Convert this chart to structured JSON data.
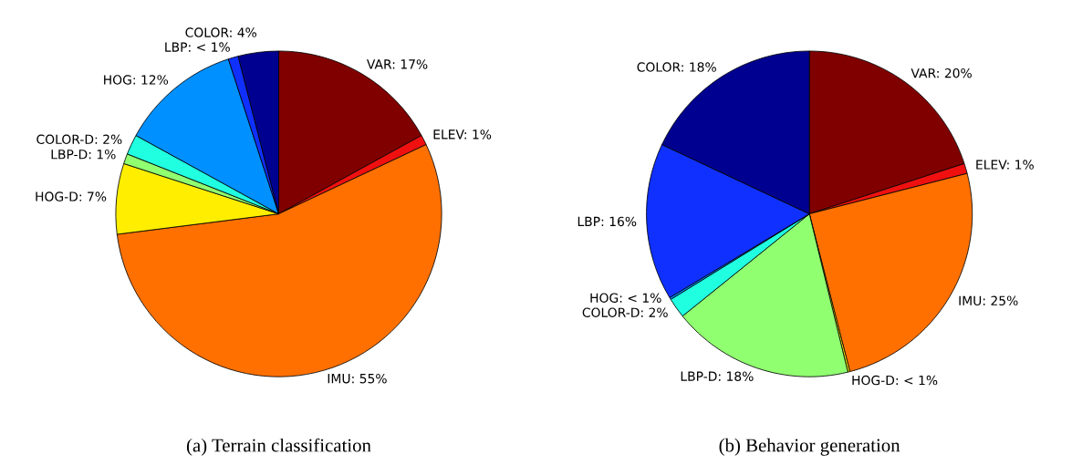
{
  "chart_data": [
    {
      "type": "pie",
      "title": "(a) Terrain classification",
      "categories": [
        "VAR",
        "ELEV",
        "IMU",
        "HOG-D",
        "LBP-D",
        "COLOR-D",
        "HOG",
        "LBP",
        "COLOR"
      ],
      "values": [
        17,
        1,
        55,
        7,
        1,
        2,
        12,
        1,
        4
      ],
      "value_labels": [
        "17%",
        "1%",
        "55%",
        "7%",
        "1%",
        "2%",
        "12%",
        "< 1%",
        "4%"
      ],
      "colors": [
        "#800000",
        "#f01010",
        "#ff7000",
        "#ffee00",
        "#90ff70",
        "#20ffe0",
        "#0090ff",
        "#1030ff",
        "#000090"
      ]
    },
    {
      "type": "pie",
      "title": "(b) Behavior generation",
      "categories": [
        "VAR",
        "ELEV",
        "IMU",
        "HOG-D",
        "LBP-D",
        "COLOR-D",
        "HOG",
        "LBP",
        "COLOR"
      ],
      "values": [
        20,
        1,
        25,
        0.2,
        18,
        2,
        0.2,
        15.6,
        18
      ],
      "value_labels": [
        "20%",
        "1%",
        "25%",
        "< 1%",
        "18%",
        "2%",
        "< 1%",
        "16%",
        "18%"
      ],
      "colors": [
        "#800000",
        "#f01010",
        "#ff7000",
        "#ffee00",
        "#90ff70",
        "#20ffe0",
        "#0090ff",
        "#1030ff",
        "#000090"
      ]
    }
  ]
}
